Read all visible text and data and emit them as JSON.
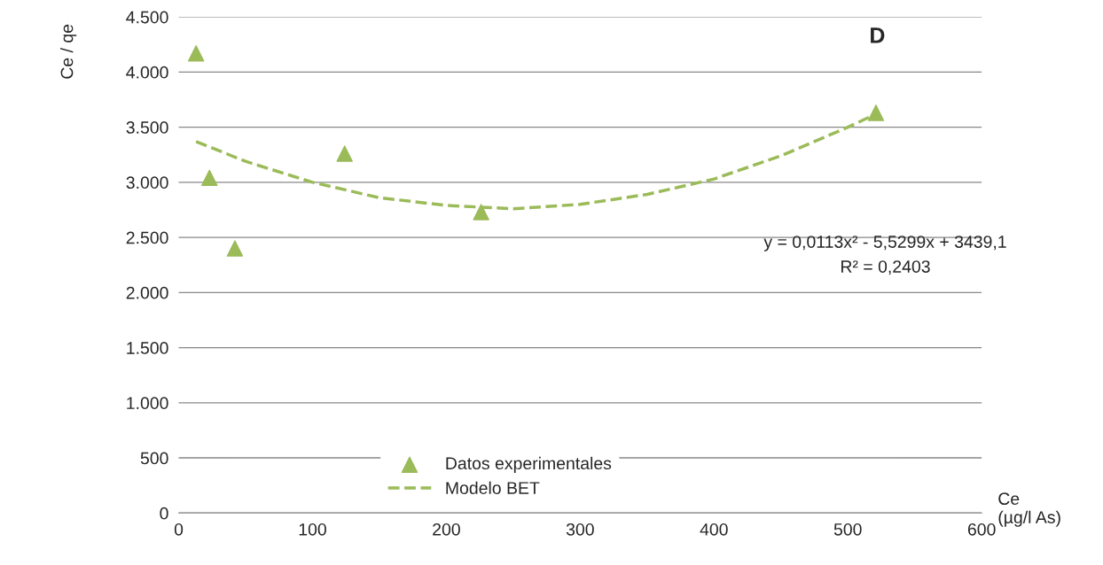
{
  "chart_data": {
    "type": "scatter",
    "xlabel": "Ce\n(µg/l As)",
    "ylabel": "Ce / qe",
    "series": [
      {
        "name": "Datos experimentales",
        "color": "#9bbb59",
        "marker": "triangle",
        "x": [
          13,
          23,
          42,
          124,
          226,
          521
        ],
        "values": [
          4170,
          3040,
          2400,
          3260,
          2730,
          3630
        ]
      },
      {
        "name": "Modelo BET",
        "type": "line",
        "color": "#9bbb59",
        "line_style": "dashed",
        "marker": "none",
        "x": [
          13,
          50,
          100,
          150,
          200,
          250,
          300,
          350,
          400,
          450,
          500,
          521
        ],
        "values": [
          3370,
          3190,
          3000,
          2860,
          2790,
          2760,
          2800,
          2890,
          3030,
          3240,
          3500,
          3620
        ]
      }
    ],
    "xlim": [
      0,
      600
    ],
    "xticks": [
      0,
      100,
      200,
      300,
      400,
      500,
      600
    ],
    "ylim": [
      0,
      4500
    ],
    "yticks": [
      0,
      500,
      {
        "value": 1000,
        "label": "1.000"
      },
      {
        "value": 1500,
        "label": "1.500"
      },
      {
        "value": 2000,
        "label": "2.000"
      },
      {
        "value": 2500,
        "label": "2.500"
      },
      {
        "value": 3000,
        "label": "3.000"
      },
      {
        "value": 3500,
        "label": "3.500"
      },
      {
        "value": 4000,
        "label": "4.000"
      },
      {
        "value": 4500,
        "label": "4.500"
      }
    ],
    "grid": "y",
    "legend": "bottom",
    "annotations": [
      "D",
      "y = 0,0113x² - 5,5299x + 3439,1",
      "R² = 0,2403"
    ]
  }
}
